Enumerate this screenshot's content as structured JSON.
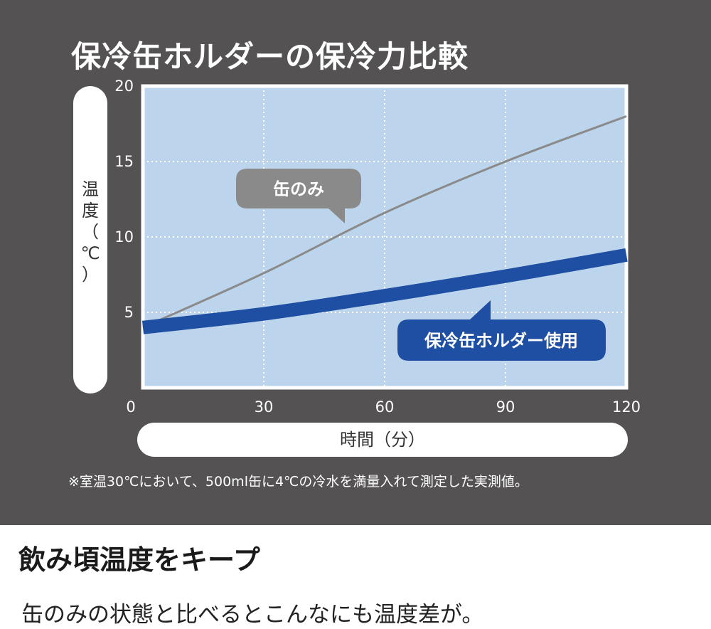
{
  "chart_data": {
    "type": "line",
    "title": "保冷缶ホルダーの保冷力比較",
    "xlabel": "時間（分）",
    "ylabel": [
      "温",
      "度",
      "（",
      "℃",
      "）"
    ],
    "xlim": [
      0,
      120
    ],
    "ylim": [
      0,
      20
    ],
    "x_ticks": [
      "0",
      "30",
      "60",
      "90",
      "120"
    ],
    "y_ticks": [
      "20",
      "15",
      "10",
      "5"
    ],
    "grid": true,
    "series": [
      {
        "name": "缶のみ",
        "color": "#8a8a8a",
        "x": [
          0,
          30,
          60,
          90,
          120
        ],
        "values": [
          4,
          7.6,
          11.6,
          15,
          18
        ]
      },
      {
        "name": "保冷缶ホルダー使用",
        "color": "#1e4fa3",
        "x": [
          0,
          30,
          60,
          90,
          120
        ],
        "values": [
          4,
          4.9,
          6.1,
          7.4,
          8.8
        ]
      }
    ],
    "colors": {
      "panel": "#545253",
      "plot_bg": "#bcd4ec",
      "plot_border": "#ffffff"
    }
  },
  "footnote": "※室温30℃において、500ml缶に4℃の冷水を満量入れて測定した実測値。",
  "headline": "飲み頃温度をキープ",
  "subline": "缶のみの状態と比べるとこんなにも温度差が。"
}
